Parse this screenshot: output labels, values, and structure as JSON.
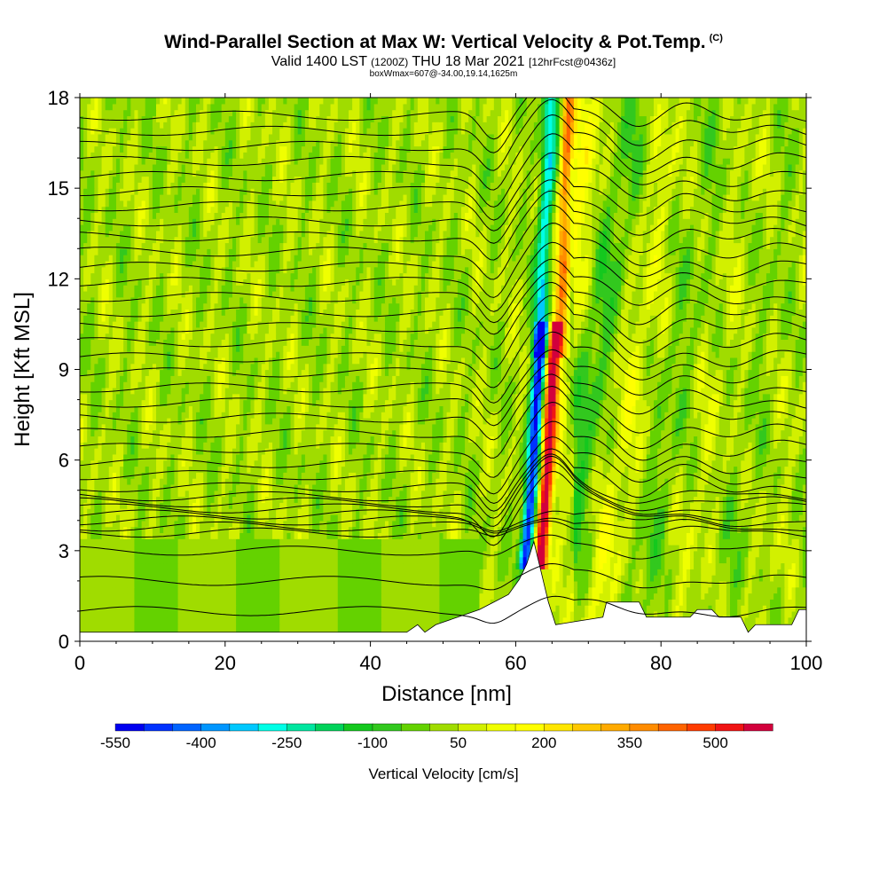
{
  "header": {
    "title": "Wind-Parallel Section at Max W: Vertical Velocity & Pot.Temp.",
    "copyright": "(C)",
    "valid_prefix": "Valid 1400 LST",
    "valid_z": "(1200Z)",
    "valid_date": "THU 18 Mar 2021",
    "forecast": "[12hrFcst@0436z]",
    "box_info": "boxWmax=607@-34.00,19.14,1625m"
  },
  "chart_data": {
    "type": "heatmap",
    "title": "Wind-Parallel Section at Max W: Vertical Velocity & Pot.Temp.",
    "xlabel": "Distance [nm]",
    "ylabel": "Height [Kft MSL]",
    "xlim": [
      0,
      100
    ],
    "ylim": [
      0,
      18
    ],
    "x_ticks": [
      0,
      20,
      40,
      60,
      80,
      100
    ],
    "y_ticks": [
      0,
      3,
      6,
      9,
      12,
      15,
      18
    ],
    "colorbar": {
      "label": "Vertical Velocity [cm/s]",
      "tick_labels": [
        "-550",
        "-400",
        "-250",
        "-100",
        "50",
        "200",
        "350",
        "500"
      ],
      "tick_values": [
        -550,
        -400,
        -250,
        -100,
        50,
        200,
        350,
        500
      ],
      "levels": [
        -550,
        -500,
        -450,
        -400,
        -350,
        -300,
        -250,
        -200,
        -150,
        -100,
        -50,
        0,
        50,
        100,
        150,
        200,
        250,
        300,
        350,
        400,
        450,
        500,
        550,
        600
      ],
      "colors": [
        "#0000f0",
        "#0032ff",
        "#0064ff",
        "#0096ff",
        "#00c8ff",
        "#00ffe6",
        "#00e6a0",
        "#00d25a",
        "#14c81e",
        "#32c81e",
        "#64d200",
        "#a0dc00",
        "#d2f000",
        "#f0ff00",
        "#ffff00",
        "#ffe600",
        "#ffc800",
        "#ffaa00",
        "#ff8c00",
        "#ff6400",
        "#ff3c00",
        "#f01414",
        "#d2003c"
      ]
    },
    "vertical_velocity_features_cm_s": [
      {
        "kind": "background",
        "value": 30
      },
      {
        "kind": "updraft",
        "x_nm": 64.5,
        "lean_nm_per_kft": 0.25,
        "peak": 607,
        "height_range_kft": [
          3,
          10
        ]
      },
      {
        "kind": "updraft",
        "x_nm": 66.8,
        "lean_nm_per_kft": 0.1,
        "peak": 300,
        "height_range_kft": [
          10,
          18
        ]
      },
      {
        "kind": "downdraft",
        "x_nm": 62.5,
        "lean_nm_per_kft": 0.3,
        "peak": -500,
        "height_range_kft": [
          3,
          10
        ]
      },
      {
        "kind": "downdraft",
        "x_nm": 64.0,
        "lean_nm_per_kft": 0.2,
        "peak": -300,
        "height_range_kft": [
          10,
          18
        ]
      }
    ],
    "terrain_kft": [
      {
        "x": 0,
        "h": 0.3
      },
      {
        "x": 45,
        "h": 0.3
      },
      {
        "x": 46.5,
        "h": 0.55
      },
      {
        "x": 47.5,
        "h": 0.3
      },
      {
        "x": 49,
        "h": 0.55
      },
      {
        "x": 52,
        "h": 0.8
      },
      {
        "x": 55,
        "h": 1.05
      },
      {
        "x": 57,
        "h": 1.3
      },
      {
        "x": 59,
        "h": 1.55
      },
      {
        "x": 60.5,
        "h": 2.05
      },
      {
        "x": 61.5,
        "h": 2.55
      },
      {
        "x": 62.5,
        "h": 3.3
      },
      {
        "x": 63.5,
        "h": 2.3
      },
      {
        "x": 64.5,
        "h": 1.3
      },
      {
        "x": 65.5,
        "h": 0.55
      },
      {
        "x": 72,
        "h": 0.8
      },
      {
        "x": 72.5,
        "h": 1.3
      },
      {
        "x": 77,
        "h": 1.3
      },
      {
        "x": 78,
        "h": 0.8
      },
      {
        "x": 84,
        "h": 0.8
      },
      {
        "x": 85,
        "h": 1.05
      },
      {
        "x": 87,
        "h": 1.05
      },
      {
        "x": 88,
        "h": 0.8
      },
      {
        "x": 91,
        "h": 0.8
      },
      {
        "x": 92,
        "h": 0.3
      },
      {
        "x": 93,
        "h": 0.55
      },
      {
        "x": 98,
        "h": 0.55
      },
      {
        "x": 99,
        "h": 1.05
      },
      {
        "x": 100,
        "h": 1.05
      }
    ],
    "potential_temperature_K": {
      "interval": 1,
      "isentrope_base_heights_kft": [
        1.0,
        2.0,
        3.0,
        3.6,
        3.8,
        4.0,
        4.2,
        4.4,
        4.6,
        4.8,
        5.1,
        5.5,
        5.9,
        6.4,
        6.9,
        7.4,
        7.9,
        8.4,
        8.9,
        9.4,
        9.9,
        10.4,
        10.9,
        11.4,
        11.9,
        12.4,
        12.9,
        13.4,
        13.9,
        14.4,
        14.9,
        15.4,
        15.9,
        16.4,
        16.9,
        17.4
      ]
    }
  }
}
